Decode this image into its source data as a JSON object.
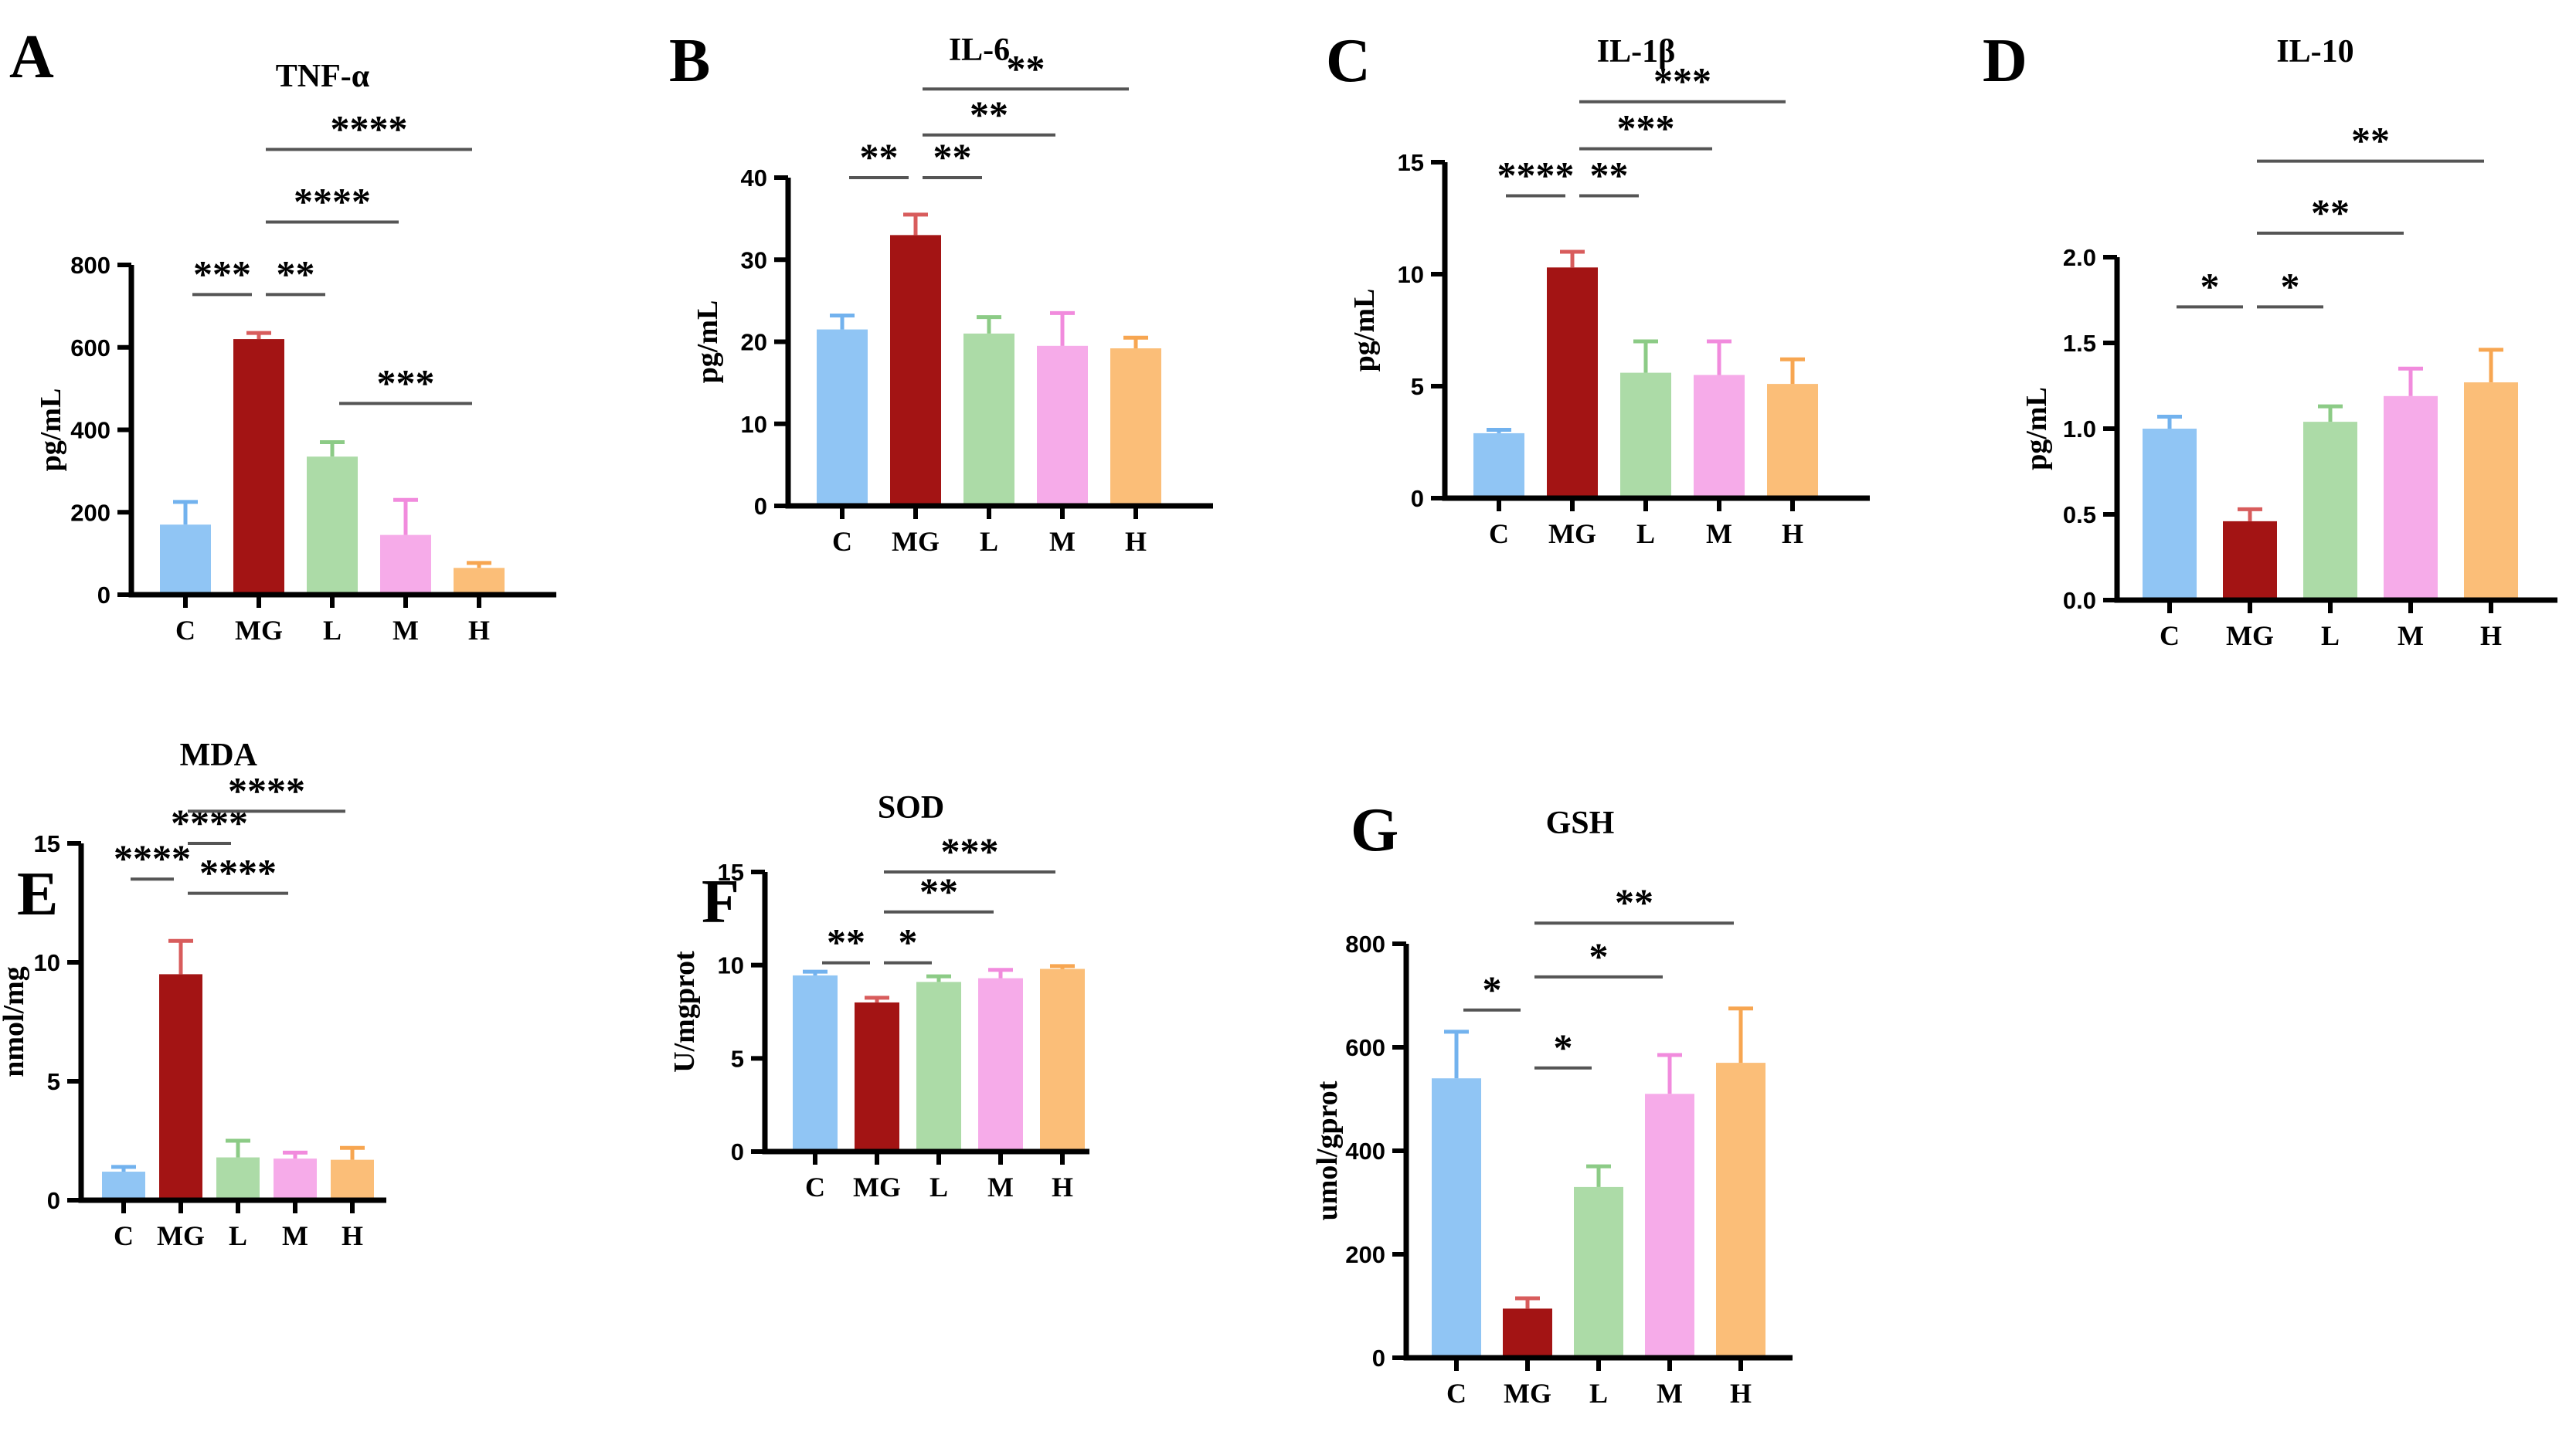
{
  "figure": {
    "background": "#ffffff",
    "groups": [
      "C",
      "MG",
      "L",
      "M",
      "H"
    ]
  },
  "colors": {
    "bars": [
      "#90C5F4",
      "#A31414",
      "#ACDBA7",
      "#F6ABE9",
      "#FBBE78"
    ],
    "errors": [
      "#72B2EE",
      "#D85C5C",
      "#8CCB86",
      "#F18BDD",
      "#F7A651"
    ],
    "axis": "#000000",
    "bracket": "#555555",
    "text": "#000000"
  },
  "chart_data": [
    {
      "panel": "A",
      "type": "bar",
      "title": "TNF-α",
      "ylabel": "pg/mL",
      "categories": [
        "C",
        "MG",
        "L",
        "M",
        "H"
      ],
      "values": [
        170,
        620,
        335,
        145,
        65
      ],
      "errors": [
        55,
        15,
        35,
        85,
        12
      ],
      "ylim": [
        0,
        800
      ],
      "yticks": [
        "0",
        "200",
        "400",
        "600",
        "800"
      ],
      "grid": false,
      "legend": "none",
      "brackets": [
        {
          "g1": "C",
          "g2": "MG",
          "label": "***",
          "level": 0.91
        },
        {
          "g1": "MG",
          "g2": "L",
          "label": "**",
          "level": 0.91
        },
        {
          "g1": "L",
          "g2": "H",
          "label": "***",
          "level": 0.58
        },
        {
          "g1": "MG",
          "g2": "M",
          "label": "****",
          "level": 1.13
        },
        {
          "g1": "MG",
          "g2": "H",
          "label": "****",
          "level": 1.35
        }
      ]
    },
    {
      "panel": "B",
      "type": "bar",
      "title": "IL-6",
      "ylabel": "pg/mL",
      "categories": [
        "C",
        "MG",
        "L",
        "M",
        "H"
      ],
      "values": [
        21.5,
        33,
        21,
        19.5,
        19.2
      ],
      "errors": [
        1.7,
        2.5,
        2.0,
        4.0,
        1.3
      ],
      "ylim": [
        0,
        40
      ],
      "yticks": [
        "0",
        "10",
        "20",
        "30",
        "40"
      ],
      "grid": false,
      "legend": "none",
      "brackets": [
        {
          "g1": "C",
          "g2": "MG",
          "label": "**",
          "level": 1.0
        },
        {
          "g1": "MG",
          "g2": "L",
          "label": "**",
          "level": 1.0
        },
        {
          "g1": "MG",
          "g2": "M",
          "label": "**",
          "level": 1.13
        },
        {
          "g1": "MG",
          "g2": "H",
          "label": "**",
          "level": 1.27
        }
      ]
    },
    {
      "panel": "C",
      "type": "bar",
      "title": "IL-1β",
      "ylabel": "pg/mL",
      "categories": [
        "C",
        "MG",
        "L",
        "M",
        "H"
      ],
      "values": [
        2.9,
        10.3,
        5.6,
        5.5,
        5.1
      ],
      "errors": [
        0.15,
        0.7,
        1.4,
        1.5,
        1.1
      ],
      "ylim": [
        0,
        15
      ],
      "yticks": [
        "0",
        "5",
        "10",
        "15"
      ],
      "grid": false,
      "legend": "none",
      "brackets": [
        {
          "g1": "C",
          "g2": "MG",
          "label": "****",
          "level": 0.9
        },
        {
          "g1": "MG",
          "g2": "L",
          "label": "**",
          "level": 0.9
        },
        {
          "g1": "MG",
          "g2": "M",
          "label": "***",
          "level": 1.04
        },
        {
          "g1": "MG",
          "g2": "H",
          "label": "***",
          "level": 1.18
        }
      ]
    },
    {
      "panel": "D",
      "type": "bar",
      "title": "IL-10",
      "ylabel": "pg/mL",
      "categories": [
        "C",
        "MG",
        "L",
        "M",
        "H"
      ],
      "values": [
        1.0,
        0.46,
        1.04,
        1.19,
        1.27
      ],
      "errors": [
        0.07,
        0.07,
        0.09,
        0.16,
        0.19
      ],
      "ylim": [
        0,
        2
      ],
      "yticks": [
        "0.0",
        "0.5",
        "1.0",
        "1.5",
        "2.0"
      ],
      "grid": false,
      "legend": "none",
      "brackets": [
        {
          "g1": "C",
          "g2": "MG",
          "label": "*",
          "level": 0.855
        },
        {
          "g1": "MG",
          "g2": "L",
          "label": "*",
          "level": 0.855
        },
        {
          "g1": "MG",
          "g2": "M",
          "label": "**",
          "level": 1.07
        },
        {
          "g1": "MG",
          "g2": "H",
          "label": "**",
          "level": 1.28
        }
      ]
    },
    {
      "panel": "E",
      "type": "bar",
      "title": "MDA",
      "ylabel": "nmol/mg",
      "categories": [
        "C",
        "MG",
        "L",
        "M",
        "H"
      ],
      "values": [
        1.2,
        9.5,
        1.8,
        1.75,
        1.7
      ],
      "errors": [
        0.2,
        1.4,
        0.7,
        0.25,
        0.5
      ],
      "ylim": [
        0,
        15
      ],
      "yticks": [
        "0",
        "5",
        "10",
        "15"
      ],
      "grid": false,
      "legend": "none",
      "brackets": [
        {
          "g1": "MG",
          "g2": "M",
          "label": "****",
          "level": 0.86
        },
        {
          "g1": "C",
          "g2": "MG",
          "label": "****",
          "level": 0.9
        },
        {
          "g1": "MG",
          "g2": "L",
          "label": "****",
          "level": 1.0
        },
        {
          "g1": "MG",
          "g2": "H",
          "label": "****",
          "level": 1.09
        }
      ]
    },
    {
      "panel": "F",
      "type": "bar",
      "title": "SOD",
      "ylabel": "U/mgprot",
      "categories": [
        "C",
        "MG",
        "L",
        "M",
        "H"
      ],
      "values": [
        9.45,
        8.0,
        9.1,
        9.3,
        9.8
      ],
      "errors": [
        0.2,
        0.25,
        0.3,
        0.45,
        0.15
      ],
      "ylim": [
        0,
        15
      ],
      "yticks": [
        "0",
        "5",
        "10",
        "15"
      ],
      "grid": false,
      "legend": "none",
      "brackets": [
        {
          "g1": "C",
          "g2": "MG",
          "label": "**",
          "level": 0.675
        },
        {
          "g1": "MG",
          "g2": "L",
          "label": "*",
          "level": 0.675
        },
        {
          "g1": "MG",
          "g2": "M",
          "label": "**",
          "level": 0.857
        },
        {
          "g1": "MG",
          "g2": "H",
          "label": "***",
          "level": 1.0
        }
      ]
    },
    {
      "panel": "G",
      "type": "bar",
      "title": "GSH",
      "ylabel": "umol/gprot",
      "categories": [
        "C",
        "MG",
        "L",
        "M",
        "H"
      ],
      "values": [
        540,
        95,
        330,
        510,
        570
      ],
      "errors": [
        90,
        20,
        40,
        75,
        105
      ],
      "ylim": [
        0,
        800
      ],
      "yticks": [
        "0",
        "200",
        "400",
        "600",
        "800"
      ],
      "grid": false,
      "legend": "none",
      "brackets": [
        {
          "g1": "MG",
          "g2": "L",
          "label": "*",
          "level": 0.7
        },
        {
          "g1": "C",
          "g2": "MG",
          "label": "*",
          "level": 0.84
        },
        {
          "g1": "MG",
          "g2": "M",
          "label": "*",
          "level": 0.92
        },
        {
          "g1": "MG",
          "g2": "H",
          "label": "**",
          "level": 1.05
        }
      ]
    }
  ]
}
